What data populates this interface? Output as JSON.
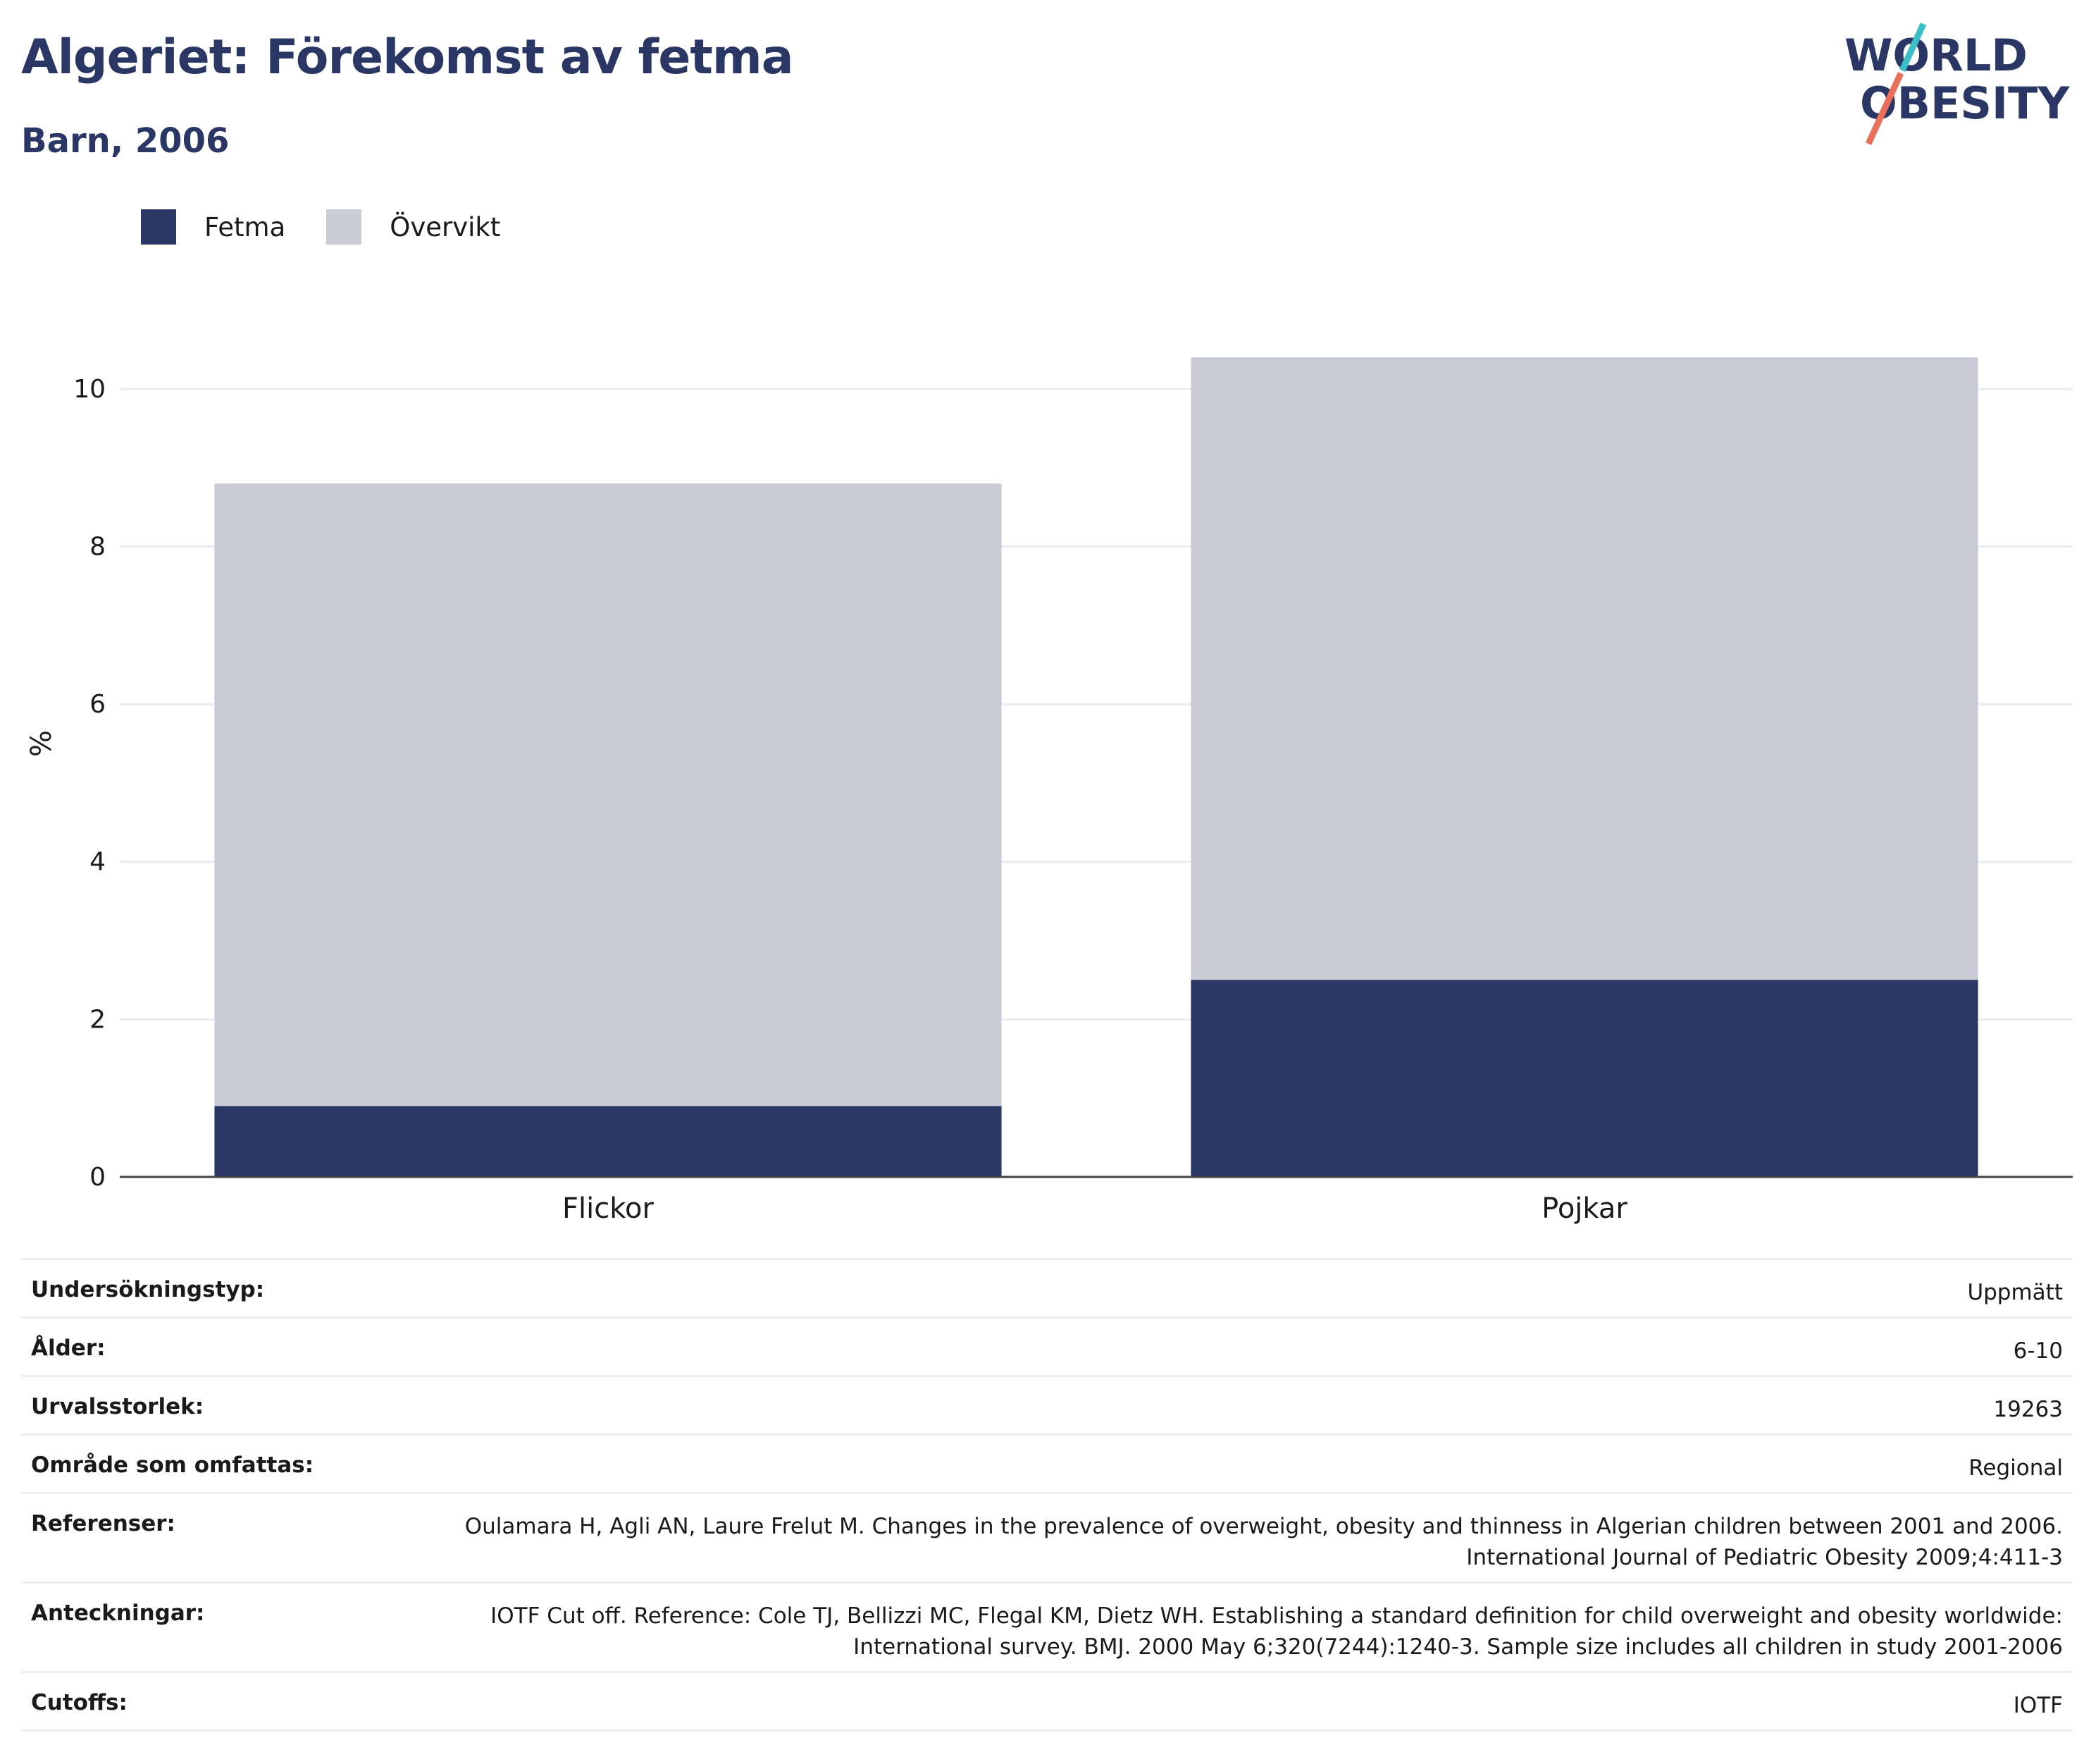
{
  "header": {
    "title": "Algeriet: Förekomst av fetma",
    "subtitle": "Barn, 2006"
  },
  "logo": {
    "line1": "WORLD",
    "line2": "OBESITY",
    "accent_colors": [
      "#3bbfc7",
      "#e8705a"
    ]
  },
  "legend": [
    {
      "label": "Fetma",
      "color": "#2a3663"
    },
    {
      "label": "Övervikt",
      "color": "#c9cbd7"
    }
  ],
  "chart_data": {
    "type": "bar",
    "stacked": true,
    "categories": [
      "Flickor",
      "Pojkar"
    ],
    "series": [
      {
        "name": "Fetma",
        "color": "#2a3663",
        "values": [
          0.9,
          2.5
        ]
      },
      {
        "name": "Övervikt",
        "color": "#c9cbd7",
        "values": [
          7.9,
          7.9
        ]
      }
    ],
    "ylabel": "%",
    "xlabel": "",
    "ylim": [
      0,
      11
    ],
    "yticks": [
      0,
      2,
      4,
      6,
      8,
      10
    ],
    "grid": true,
    "legend_position": "top-left"
  },
  "info": [
    {
      "key": "Undersökningstyp:",
      "value": "Uppmätt"
    },
    {
      "key": "Ålder:",
      "value": "6-10"
    },
    {
      "key": "Urvalsstorlek:",
      "value": "19263"
    },
    {
      "key": "Område som omfattas:",
      "value": "Regional"
    },
    {
      "key": "Referenser:",
      "value": "Oulamara H, Agli AN, Laure Frelut M. Changes in the prevalence of overweight, obesity and thinness in Algerian children between 2001 and 2006. International Journal of Pediatric Obesity 2009;4:411-3"
    },
    {
      "key": "Anteckningar:",
      "value": "IOTF Cut off. Reference: Cole TJ, Bellizzi MC, Flegal KM, Dietz WH. Establishing a standard definition for child overweight and obesity worldwide: International survey. BMJ. 2000 May 6;320(7244):1240-3. Sample size includes all children in study 2001-2006"
    },
    {
      "key": "Cutoffs:",
      "value": "IOTF"
    }
  ]
}
